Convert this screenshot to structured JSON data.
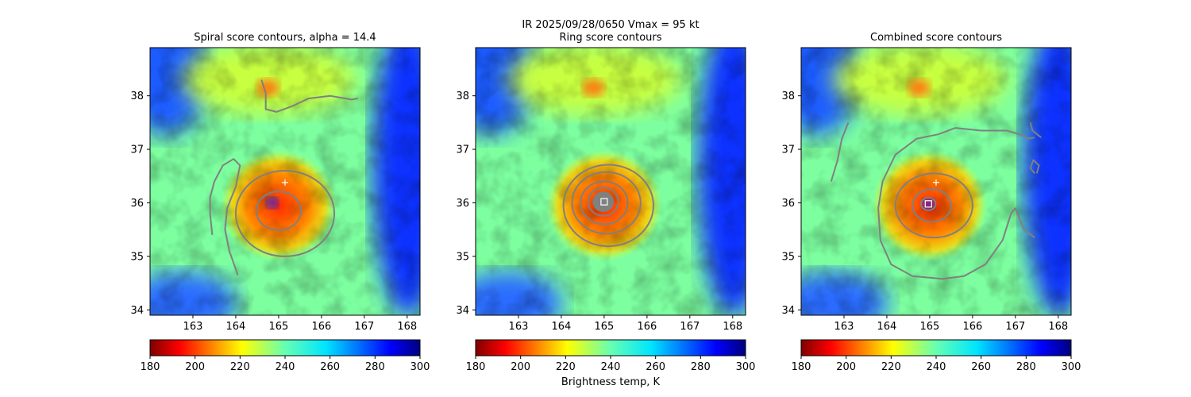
{
  "figure_title_line1": "IR  2025/09/28/0650    Vmax = 95 kt",
  "colorbar_label": "Brightness temp, K",
  "colormap": "jet_r",
  "contour_color": "#808080",
  "marker_color": "#ffffff",
  "chart_data": [
    {
      "type": "heatmap",
      "title": "Spiral score contours, alpha = 14.4",
      "xlim": [
        162.0,
        168.3
      ],
      "ylim": [
        33.9,
        38.9
      ],
      "xticks": [
        "163",
        "164",
        "165",
        "166",
        "167",
        "168"
      ],
      "yticks": [
        "34",
        "35",
        "36",
        "37",
        "38"
      ],
      "colorbar_ticks": [
        "180",
        "200",
        "220",
        "240",
        "260",
        "280",
        "300"
      ],
      "colorbar_range": [
        180,
        300
      ],
      "plus_marker": {
        "lon": 165.15,
        "lat": 36.38
      },
      "center_marker": null,
      "contours": [
        {
          "kind": "ellipse",
          "lon": 165.0,
          "lat": 35.85,
          "rx": 0.52,
          "ry": 0.45
        },
        {
          "kind": "ellipse",
          "lon": 165.15,
          "lat": 35.8,
          "rx": 1.15,
          "ry": 1.0
        },
        {
          "kind": "path",
          "points": [
            [
              163.45,
              35.4
            ],
            [
              163.4,
              35.8
            ],
            [
              163.4,
              36.1
            ],
            [
              163.5,
              36.4
            ],
            [
              163.7,
              36.7
            ],
            [
              163.95,
              36.82
            ],
            [
              164.1,
              36.7
            ],
            [
              164.0,
              36.3
            ],
            [
              163.8,
              35.9
            ],
            [
              163.75,
              35.5
            ],
            [
              163.85,
              35.1
            ],
            [
              164.05,
              34.65
            ]
          ]
        },
        {
          "kind": "path",
          "points": [
            [
              164.6,
              38.3
            ],
            [
              164.7,
              38.05
            ],
            [
              164.7,
              37.75
            ],
            [
              164.95,
              37.7
            ],
            [
              165.3,
              37.8
            ],
            [
              165.7,
              37.95
            ],
            [
              166.2,
              38.0
            ],
            [
              166.7,
              37.93
            ],
            [
              166.85,
              37.95
            ]
          ]
        }
      ]
    },
    {
      "type": "heatmap",
      "title": "Ring score contours",
      "xlim": [
        162.0,
        168.3
      ],
      "ylim": [
        33.9,
        38.9
      ],
      "xticks": [
        "163",
        "164",
        "165",
        "166",
        "167",
        "168"
      ],
      "yticks": [
        "34",
        "35",
        "36",
        "37",
        "38"
      ],
      "colorbar_ticks": [
        "180",
        "200",
        "220",
        "240",
        "260",
        "280",
        "300"
      ],
      "colorbar_range": [
        180,
        300
      ],
      "plus_marker": null,
      "center_marker": {
        "lon": 165.0,
        "lat": 36.02
      },
      "contours": [
        {
          "kind": "filled",
          "lon": 164.98,
          "lat": 36.02,
          "rx": 0.23,
          "ry": 0.22
        },
        {
          "kind": "ellipse",
          "lon": 164.98,
          "lat": 36.02,
          "rx": 0.35,
          "ry": 0.33
        },
        {
          "kind": "ellipse",
          "lon": 165.0,
          "lat": 36.0,
          "rx": 0.55,
          "ry": 0.5
        },
        {
          "kind": "ellipse",
          "lon": 165.05,
          "lat": 36.0,
          "rx": 0.8,
          "ry": 0.72
        },
        {
          "kind": "ellipse",
          "lon": 165.1,
          "lat": 35.95,
          "rx": 1.05,
          "ry": 0.95
        }
      ]
    },
    {
      "type": "heatmap",
      "title": "Combined score contours",
      "xlim": [
        162.0,
        168.3
      ],
      "ylim": [
        33.9,
        38.9
      ],
      "xticks": [
        "163",
        "164",
        "165",
        "166",
        "167",
        "168"
      ],
      "yticks": [
        "34",
        "35",
        "36",
        "37",
        "38"
      ],
      "colorbar_ticks": [
        "180",
        "200",
        "220",
        "240",
        "260",
        "280",
        "300"
      ],
      "colorbar_range": [
        180,
        300
      ],
      "plus_marker": {
        "lon": 165.15,
        "lat": 36.38
      },
      "center_marker": {
        "lon": 164.97,
        "lat": 35.98
      },
      "contours": [
        {
          "kind": "ellipse",
          "lon": 164.97,
          "lat": 35.98,
          "rx": 0.17,
          "ry": 0.15
        },
        {
          "kind": "ellipse",
          "lon": 165.05,
          "lat": 35.95,
          "rx": 0.45,
          "ry": 0.38
        },
        {
          "kind": "ellipse",
          "lon": 165.1,
          "lat": 35.95,
          "rx": 0.9,
          "ry": 0.75
        },
        {
          "kind": "path",
          "points": [
            [
              167.45,
              35.35
            ],
            [
              167.2,
              35.5
            ],
            [
              167.0,
              35.9
            ],
            [
              166.9,
              35.8
            ],
            [
              166.7,
              35.3
            ],
            [
              166.3,
              34.85
            ],
            [
              165.8,
              34.63
            ],
            [
              165.3,
              34.58
            ],
            [
              164.6,
              34.63
            ],
            [
              164.1,
              34.85
            ],
            [
              163.85,
              35.3
            ],
            [
              163.8,
              35.9
            ],
            [
              163.9,
              36.4
            ],
            [
              164.2,
              36.9
            ],
            [
              164.7,
              37.2
            ],
            [
              165.2,
              37.28
            ],
            [
              165.6,
              37.4
            ],
            [
              166.2,
              37.35
            ],
            [
              166.8,
              37.35
            ],
            [
              167.1,
              37.28
            ],
            [
              167.3,
              37.2
            ],
            [
              167.45,
              37.22
            ]
          ]
        },
        {
          "kind": "path",
          "points": [
            [
              162.7,
              36.4
            ],
            [
              162.85,
              36.8
            ],
            [
              162.95,
              37.2
            ],
            [
              163.1,
              37.5
            ]
          ]
        },
        {
          "kind": "path",
          "points": [
            [
              167.45,
              36.55
            ],
            [
              167.35,
              36.65
            ],
            [
              167.42,
              36.8
            ],
            [
              167.55,
              36.7
            ],
            [
              167.5,
              36.55
            ]
          ]
        },
        {
          "kind": "path",
          "points": [
            [
              167.35,
              37.5
            ],
            [
              167.4,
              37.35
            ],
            [
              167.6,
              37.22
            ]
          ]
        }
      ]
    }
  ]
}
